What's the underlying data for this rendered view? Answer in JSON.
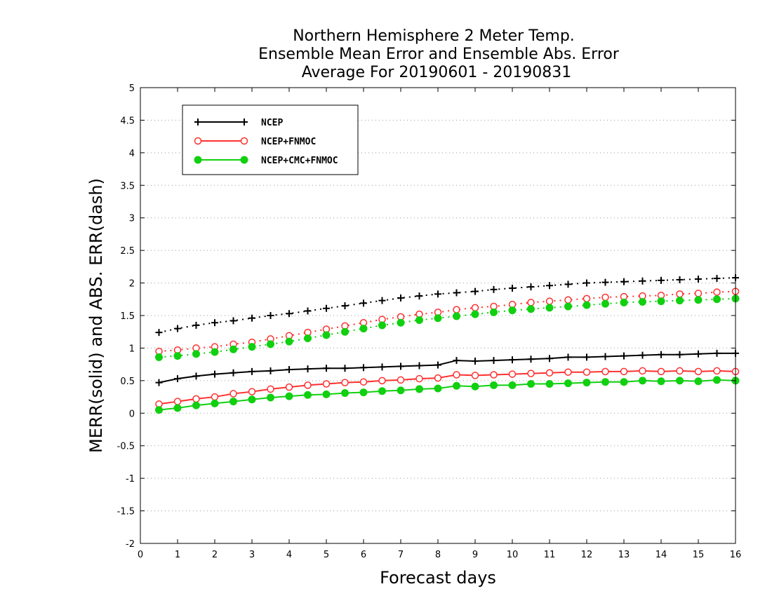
{
  "chart_data": {
    "type": "line",
    "title_lines": [
      "Northern Hemisphere 2 Meter Temp.",
      "Ensemble Mean Error and Ensemble Abs. Error",
      "Average For 20190601 - 20190831"
    ],
    "xlabel": "Forecast days",
    "ylabel": "MERR(solid) and ABS. ERR(dash)",
    "xlim": [
      0,
      16
    ],
    "ylim": [
      -2,
      5
    ],
    "x_ticks": [
      "0",
      "1",
      "2",
      "3",
      "4",
      "5",
      "6",
      "7",
      "8",
      "9",
      "10",
      "11",
      "12",
      "13",
      "14",
      "15",
      "16"
    ],
    "y_ticks": [
      "-2",
      "-1.5",
      "-1",
      "-0.5",
      "0",
      "0.5",
      "1",
      "1.5",
      "2",
      "2.5",
      "3",
      "3.5",
      "4",
      "4.5",
      "5"
    ],
    "grid": "horizontal dotted",
    "legend_position": "top-left",
    "x": [
      0.5,
      1,
      1.5,
      2,
      2.5,
      3,
      3.5,
      4,
      4.5,
      5,
      5.5,
      6,
      6.5,
      7,
      7.5,
      8,
      8.5,
      9,
      9.5,
      10,
      10.5,
      11,
      11.5,
      12,
      12.5,
      13,
      13.5,
      14,
      14.5,
      15,
      15.5,
      16
    ],
    "series": [
      {
        "name": "NCEP",
        "color": "#000000",
        "marker": "plus",
        "merr_solid": [
          0.47,
          0.53,
          0.57,
          0.6,
          0.62,
          0.64,
          0.65,
          0.67,
          0.68,
          0.69,
          0.69,
          0.7,
          0.71,
          0.72,
          0.73,
          0.74,
          0.81,
          0.8,
          0.81,
          0.82,
          0.83,
          0.84,
          0.86,
          0.86,
          0.87,
          0.88,
          0.89,
          0.9,
          0.9,
          0.91,
          0.92,
          0.92
        ],
        "abs_err_dash": [
          1.24,
          1.3,
          1.35,
          1.39,
          1.42,
          1.46,
          1.5,
          1.53,
          1.57,
          1.61,
          1.65,
          1.69,
          1.73,
          1.77,
          1.8,
          1.83,
          1.85,
          1.87,
          1.9,
          1.92,
          1.94,
          1.96,
          1.98,
          2.0,
          2.01,
          2.02,
          2.03,
          2.04,
          2.05,
          2.06,
          2.07,
          2.08
        ]
      },
      {
        "name": "NCEP+FNMOC",
        "color": "#ff3030",
        "marker": "open-circle",
        "merr_solid": [
          0.14,
          0.18,
          0.22,
          0.25,
          0.3,
          0.33,
          0.37,
          0.4,
          0.43,
          0.45,
          0.47,
          0.48,
          0.5,
          0.51,
          0.53,
          0.54,
          0.59,
          0.58,
          0.59,
          0.6,
          0.61,
          0.62,
          0.63,
          0.63,
          0.64,
          0.64,
          0.65,
          0.64,
          0.65,
          0.64,
          0.65,
          0.64
        ],
        "abs_err_dash": [
          0.95,
          0.97,
          1.0,
          1.02,
          1.06,
          1.09,
          1.14,
          1.19,
          1.24,
          1.29,
          1.34,
          1.39,
          1.44,
          1.48,
          1.52,
          1.55,
          1.59,
          1.62,
          1.64,
          1.67,
          1.7,
          1.72,
          1.74,
          1.76,
          1.78,
          1.79,
          1.8,
          1.81,
          1.83,
          1.84,
          1.86,
          1.87
        ]
      },
      {
        "name": "NCEP+CMC+FNMOC",
        "color": "#10d010",
        "marker": "filled-circle",
        "merr_solid": [
          0.05,
          0.08,
          0.12,
          0.15,
          0.18,
          0.21,
          0.24,
          0.26,
          0.28,
          0.29,
          0.31,
          0.32,
          0.34,
          0.35,
          0.37,
          0.38,
          0.42,
          0.41,
          0.43,
          0.43,
          0.45,
          0.45,
          0.46,
          0.47,
          0.48,
          0.48,
          0.5,
          0.49,
          0.5,
          0.49,
          0.51,
          0.5
        ],
        "abs_err_dash": [
          0.86,
          0.88,
          0.91,
          0.94,
          0.98,
          1.02,
          1.06,
          1.1,
          1.15,
          1.2,
          1.25,
          1.3,
          1.35,
          1.39,
          1.43,
          1.46,
          1.49,
          1.52,
          1.55,
          1.58,
          1.6,
          1.62,
          1.64,
          1.66,
          1.68,
          1.7,
          1.71,
          1.72,
          1.73,
          1.74,
          1.75,
          1.76
        ]
      }
    ]
  }
}
